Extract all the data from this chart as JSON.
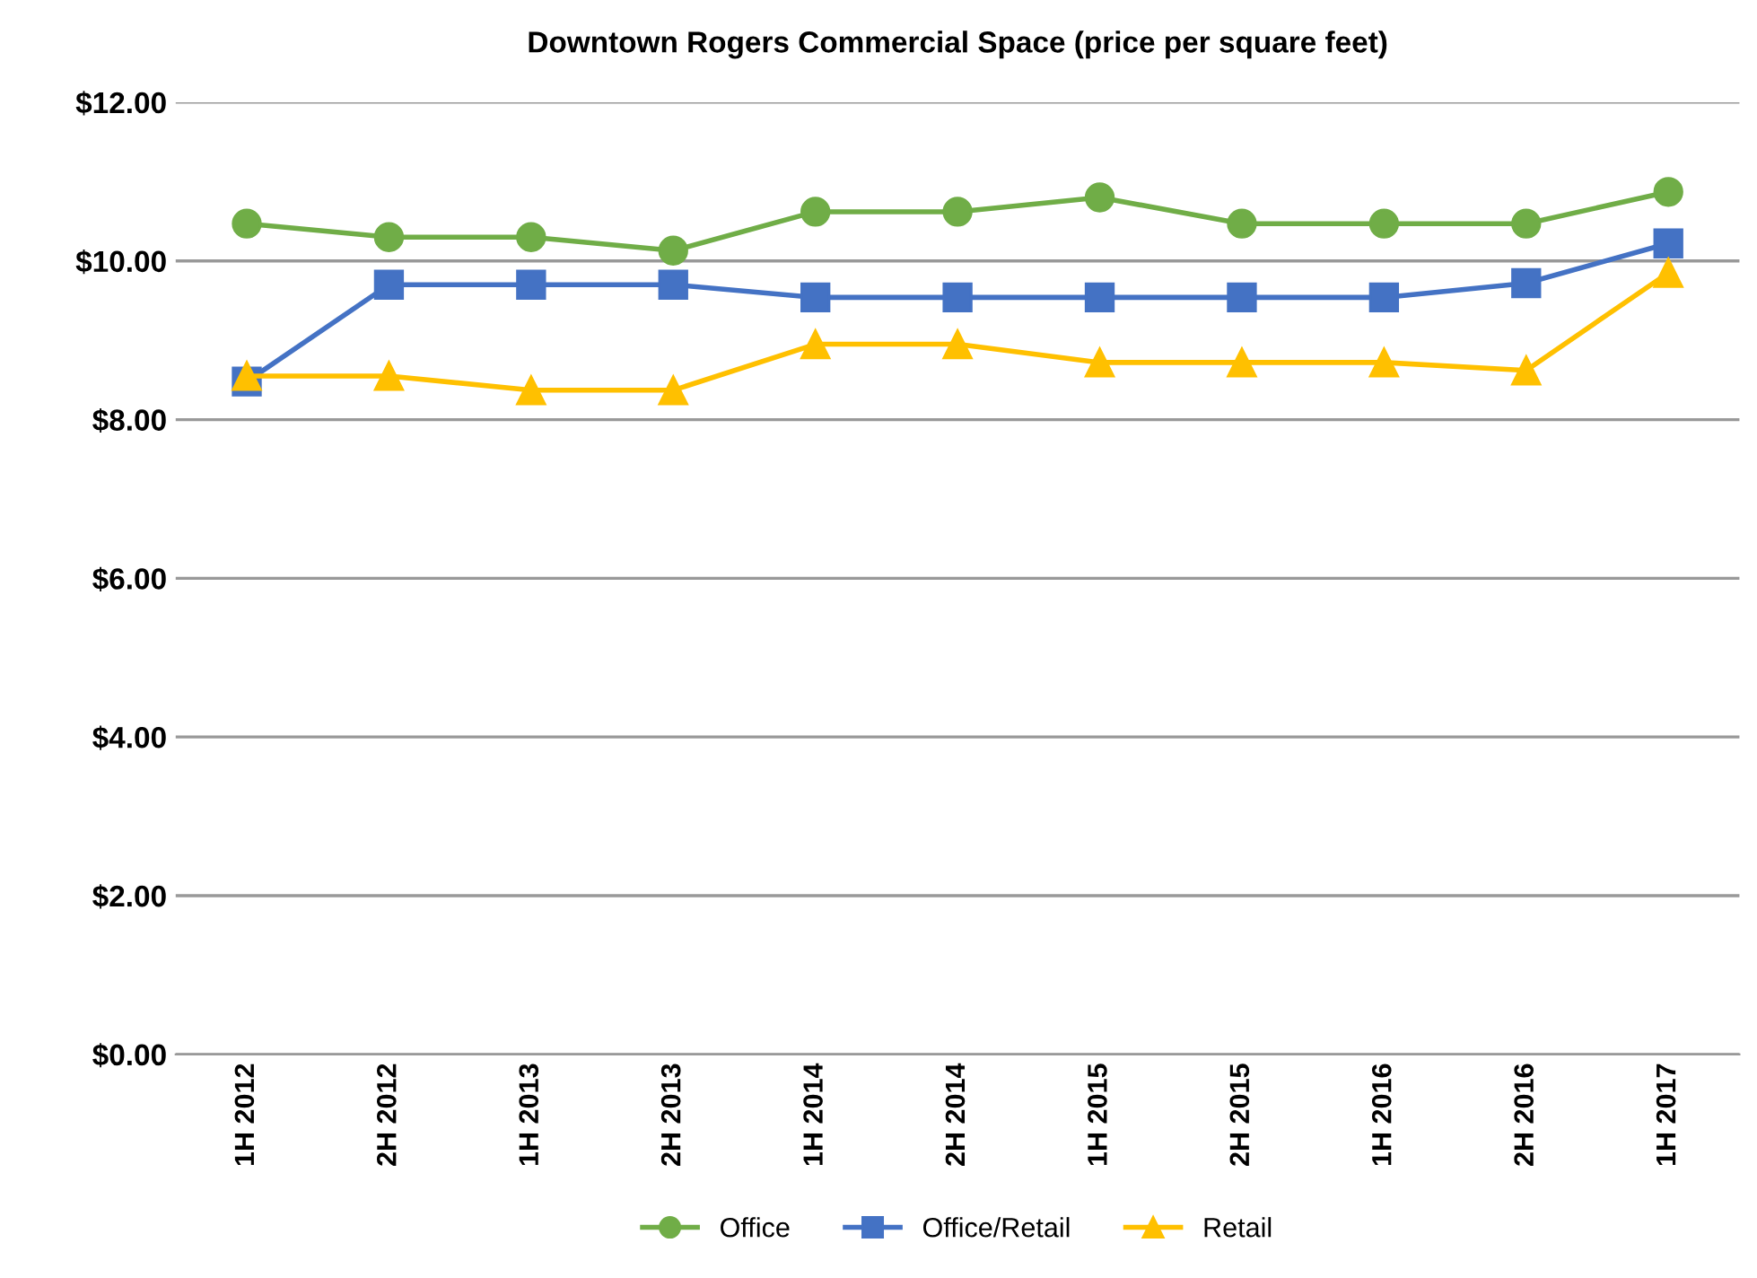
{
  "chart_data": {
    "type": "line",
    "title": "Downtown Rogers Commercial Space (price per square feet)",
    "categories": [
      "1H 2012",
      "2H 2012",
      "1H 2013",
      "2H 2013",
      "1H 2014",
      "2H 2014",
      "1H 2015",
      "2H 2015",
      "1H 2016",
      "2H 2016",
      "1H 2017"
    ],
    "series": [
      {
        "name": "Office",
        "color": "#70ad47",
        "marker": "circle",
        "values": [
          10.47,
          10.3,
          10.3,
          10.13,
          10.62,
          10.62,
          10.8,
          10.47,
          10.47,
          10.47,
          10.87
        ]
      },
      {
        "name": "Office/Retail",
        "color": "#4472c4",
        "marker": "square",
        "values": [
          8.48,
          9.7,
          9.7,
          9.7,
          9.54,
          9.54,
          9.54,
          9.54,
          9.54,
          9.72,
          10.22
        ]
      },
      {
        "name": "Retail",
        "color": "#ffc000",
        "marker": "triangle",
        "values": [
          8.55,
          8.55,
          8.37,
          8.37,
          8.95,
          8.95,
          8.72,
          8.72,
          8.72,
          8.62,
          9.85
        ]
      }
    ],
    "ylim": [
      0,
      12
    ],
    "yticks": [
      {
        "value": 0,
        "label": "$0.00"
      },
      {
        "value": 2,
        "label": "$2.00"
      },
      {
        "value": 4,
        "label": "$4.00"
      },
      {
        "value": 6,
        "label": "$6.00"
      },
      {
        "value": 8,
        "label": "$8.00"
      },
      {
        "value": 10,
        "label": "$10.00"
      },
      {
        "value": 12,
        "label": "$12.00"
      }
    ],
    "grid": "y",
    "legend": "bottom",
    "line_style": "solid"
  }
}
